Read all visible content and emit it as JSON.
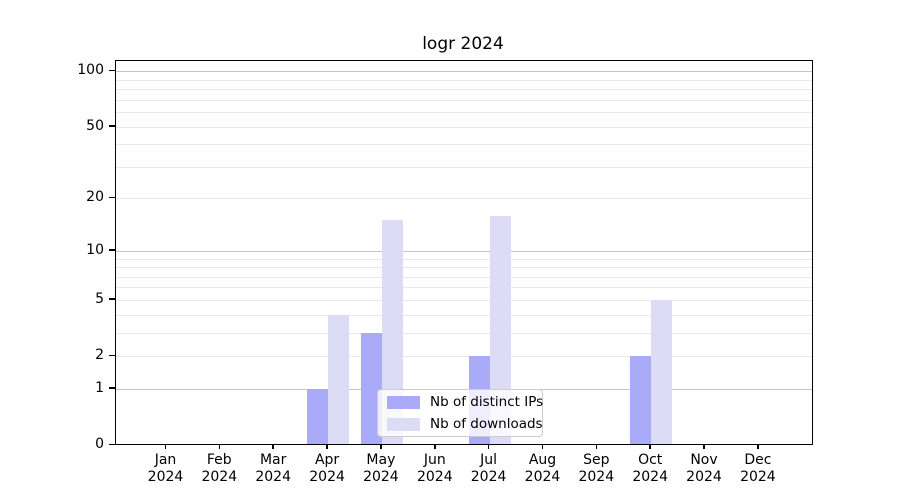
{
  "figure": {
    "title": "logr 2024"
  },
  "chart_data": {
    "type": "bar",
    "title": "logr 2024",
    "categories": [
      "Jan",
      "Feb",
      "Mar",
      "Apr",
      "May",
      "Jun",
      "Jul",
      "Aug",
      "Sep",
      "Oct",
      "Nov",
      "Dec"
    ],
    "category_year": "2024",
    "series": [
      {
        "name": "Nb of distinct IPs",
        "color": "#a9aaf8",
        "values": [
          0,
          0,
          0,
          1,
          3,
          0,
          2,
          0,
          0,
          2,
          0,
          0
        ]
      },
      {
        "name": "Nb of downloads",
        "color": "#dcdcf7",
        "values": [
          0,
          0,
          0,
          4,
          15,
          0,
          16,
          0,
          0,
          5,
          0,
          0
        ]
      }
    ],
    "xlabel": "",
    "ylabel": "",
    "yscale": "log1p",
    "ylim": [
      0,
      110
    ],
    "yticks": [
      0,
      1,
      2,
      5,
      10,
      20,
      50,
      100
    ],
    "minor_gridlines": [
      3,
      4,
      6,
      7,
      8,
      9,
      30,
      40,
      60,
      70,
      80,
      90
    ],
    "decade_gridlines": [
      1,
      10,
      100
    ],
    "grid": true,
    "legend_position": "lower center",
    "colors": {
      "grid_decade": "#c4c4c4",
      "grid_minor": "#e9e9e9",
      "spine": "#000000",
      "text": "#000000"
    }
  }
}
